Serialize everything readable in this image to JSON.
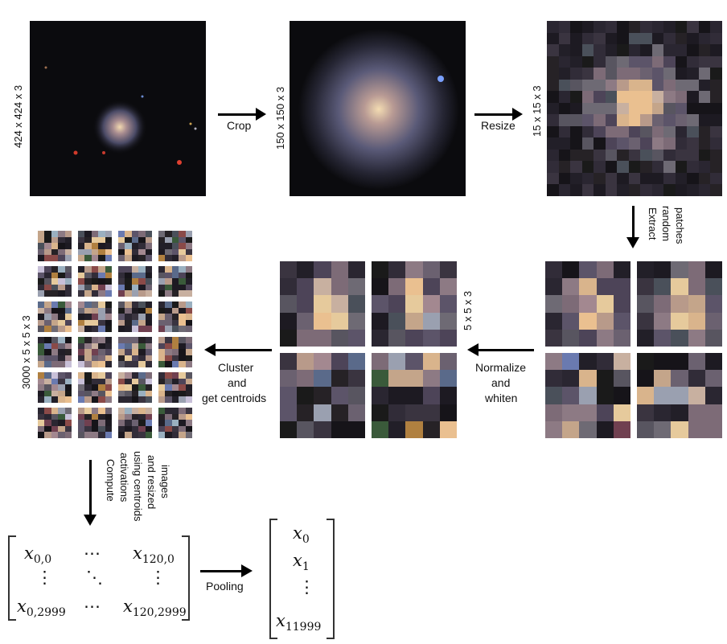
{
  "labels": {
    "dim_424": "424 x 424 x 3",
    "dim_150": "150 x 150 x 3",
    "dim_15": "15 x 15 x 3",
    "crop": "Crop",
    "resize": "Resize",
    "extract": [
      "Extract",
      "random",
      "patches"
    ],
    "dim_5": "5 x 5 x 3",
    "normalize": [
      "Normalize",
      "and",
      "whiten"
    ],
    "cluster": [
      "Cluster",
      "and",
      "get centroids"
    ],
    "dim_3000": "3000 x 5 x 5 x 3",
    "compute": [
      "Compute",
      "activations",
      "using centroids",
      "and resized",
      "images"
    ],
    "pooling": "Pooling"
  },
  "matrix": {
    "r0c0": "x",
    "r0c0_sub": "0,0",
    "r0c1": "⋯",
    "r0c2": "x",
    "r0c2_sub": "120,0",
    "r1c0": "⋮",
    "r1c1": "⋱",
    "r1c2": "⋮",
    "r2c0": "x",
    "r2c0_sub": "0,2999",
    "r2c1": "⋯",
    "r2c2": "x",
    "r2c2_sub": "120,2999"
  },
  "vector": {
    "v0": "x",
    "v0_sub": "0",
    "v1": "x",
    "v1_sub": "1",
    "v2": "⋮",
    "v3": "x",
    "v3_sub": "11999"
  },
  "palette": {
    "dark": [
      "#161419",
      "#1d1a22",
      "#221f28",
      "#2a2631",
      "#312c38",
      "#3a3440",
      "#1a1a1a",
      "#262226"
    ],
    "mid": [
      "#4d4458",
      "#5c5469",
      "#6b6170",
      "#7d6b77",
      "#8d7a84",
      "#6e6a74",
      "#585560",
      "#4a505a"
    ],
    "bright": [
      "#b89a8a",
      "#c4a58a",
      "#d9b48c",
      "#eac090",
      "#a38890",
      "#9aa0b0",
      "#c8b0a0",
      "#e6ca9c"
    ],
    "color": [
      "#8a4a48",
      "#5a6a8a",
      "#3a5a3a",
      "#6a7ab0",
      "#b08040",
      "#704050",
      "#9ab0c0",
      "#c8c0d8"
    ]
  }
}
